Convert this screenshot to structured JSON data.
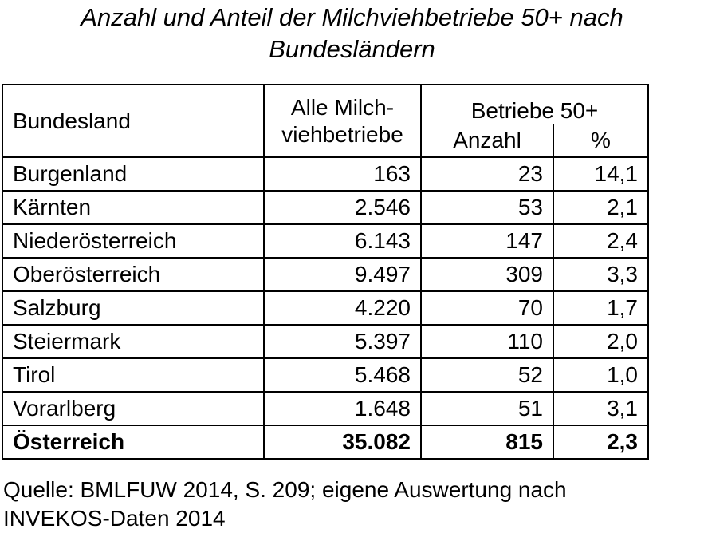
{
  "title": [
    "Anzahl und Anteil der Milchviehbetriebe 50+ nach",
    "Bundesländern"
  ],
  "table": {
    "header": {
      "region": "Bundesland",
      "all": [
        "Alle Milch-",
        "viehbetriebe"
      ],
      "group": "Betriebe 50+",
      "count": "Anzahl",
      "share": "%"
    },
    "rows": [
      [
        "Burgenland",
        "163",
        "23",
        "14,1"
      ],
      [
        "Kärnten",
        "2.546",
        "53",
        "2,1"
      ],
      [
        "Niederösterreich",
        "6.143",
        "147",
        "2,4"
      ],
      [
        "Oberösterreich",
        "9.497",
        "309",
        "3,3"
      ],
      [
        "Salzburg",
        "4.220",
        "70",
        "1,7"
      ],
      [
        "Steiermark",
        "5.397",
        "110",
        "2,0"
      ],
      [
        "Tirol",
        "5.468",
        "52",
        "1,0"
      ],
      [
        "Vorarlberg",
        "1.648",
        "51",
        "3,1"
      ]
    ],
    "total": [
      "Österreich",
      "35.082",
      "815",
      "2,3"
    ]
  },
  "source": [
    "Quelle: BMLFUW 2014, S. 209; eigene Auswertung nach",
    "INVEKOS-Daten 2014"
  ]
}
